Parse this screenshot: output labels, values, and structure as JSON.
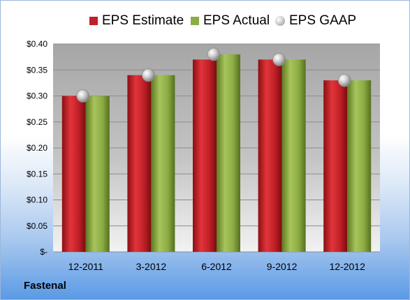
{
  "chart_data": {
    "type": "bar",
    "title": "",
    "xlabel": "",
    "ylabel": "",
    "categories": [
      "12-2011",
      "3-2012",
      "6-2012",
      "9-2012",
      "12-2012"
    ],
    "series": [
      {
        "name": "EPS Estimate",
        "type": "bar",
        "values": [
          0.3,
          0.34,
          0.37,
          0.37,
          0.33
        ]
      },
      {
        "name": "EPS Actual",
        "type": "bar",
        "values": [
          0.3,
          0.34,
          0.38,
          0.37,
          0.33
        ]
      },
      {
        "name": "EPS GAAP",
        "type": "marker",
        "values": [
          0.3,
          0.34,
          0.38,
          0.37,
          0.33
        ]
      }
    ],
    "ylim": [
      0,
      0.4
    ],
    "yticks": [
      0,
      0.05,
      0.1,
      0.15,
      0.2,
      0.25,
      0.3,
      0.35,
      0.4
    ],
    "ytick_labels": [
      "$-",
      "$0.05",
      "$0.10",
      "$0.15",
      "$0.20",
      "$0.25",
      "$0.30",
      "$0.35",
      "$0.40"
    ],
    "grid": true,
    "legend_position": "top",
    "colors": {
      "estimate": "#c0202a",
      "actual": "#8cac44",
      "gaap": "#b8b8b8"
    }
  },
  "legend": {
    "estimate": "EPS Estimate",
    "actual": "EPS Actual",
    "gaap": "EPS GAAP"
  },
  "company": "Fastenal"
}
